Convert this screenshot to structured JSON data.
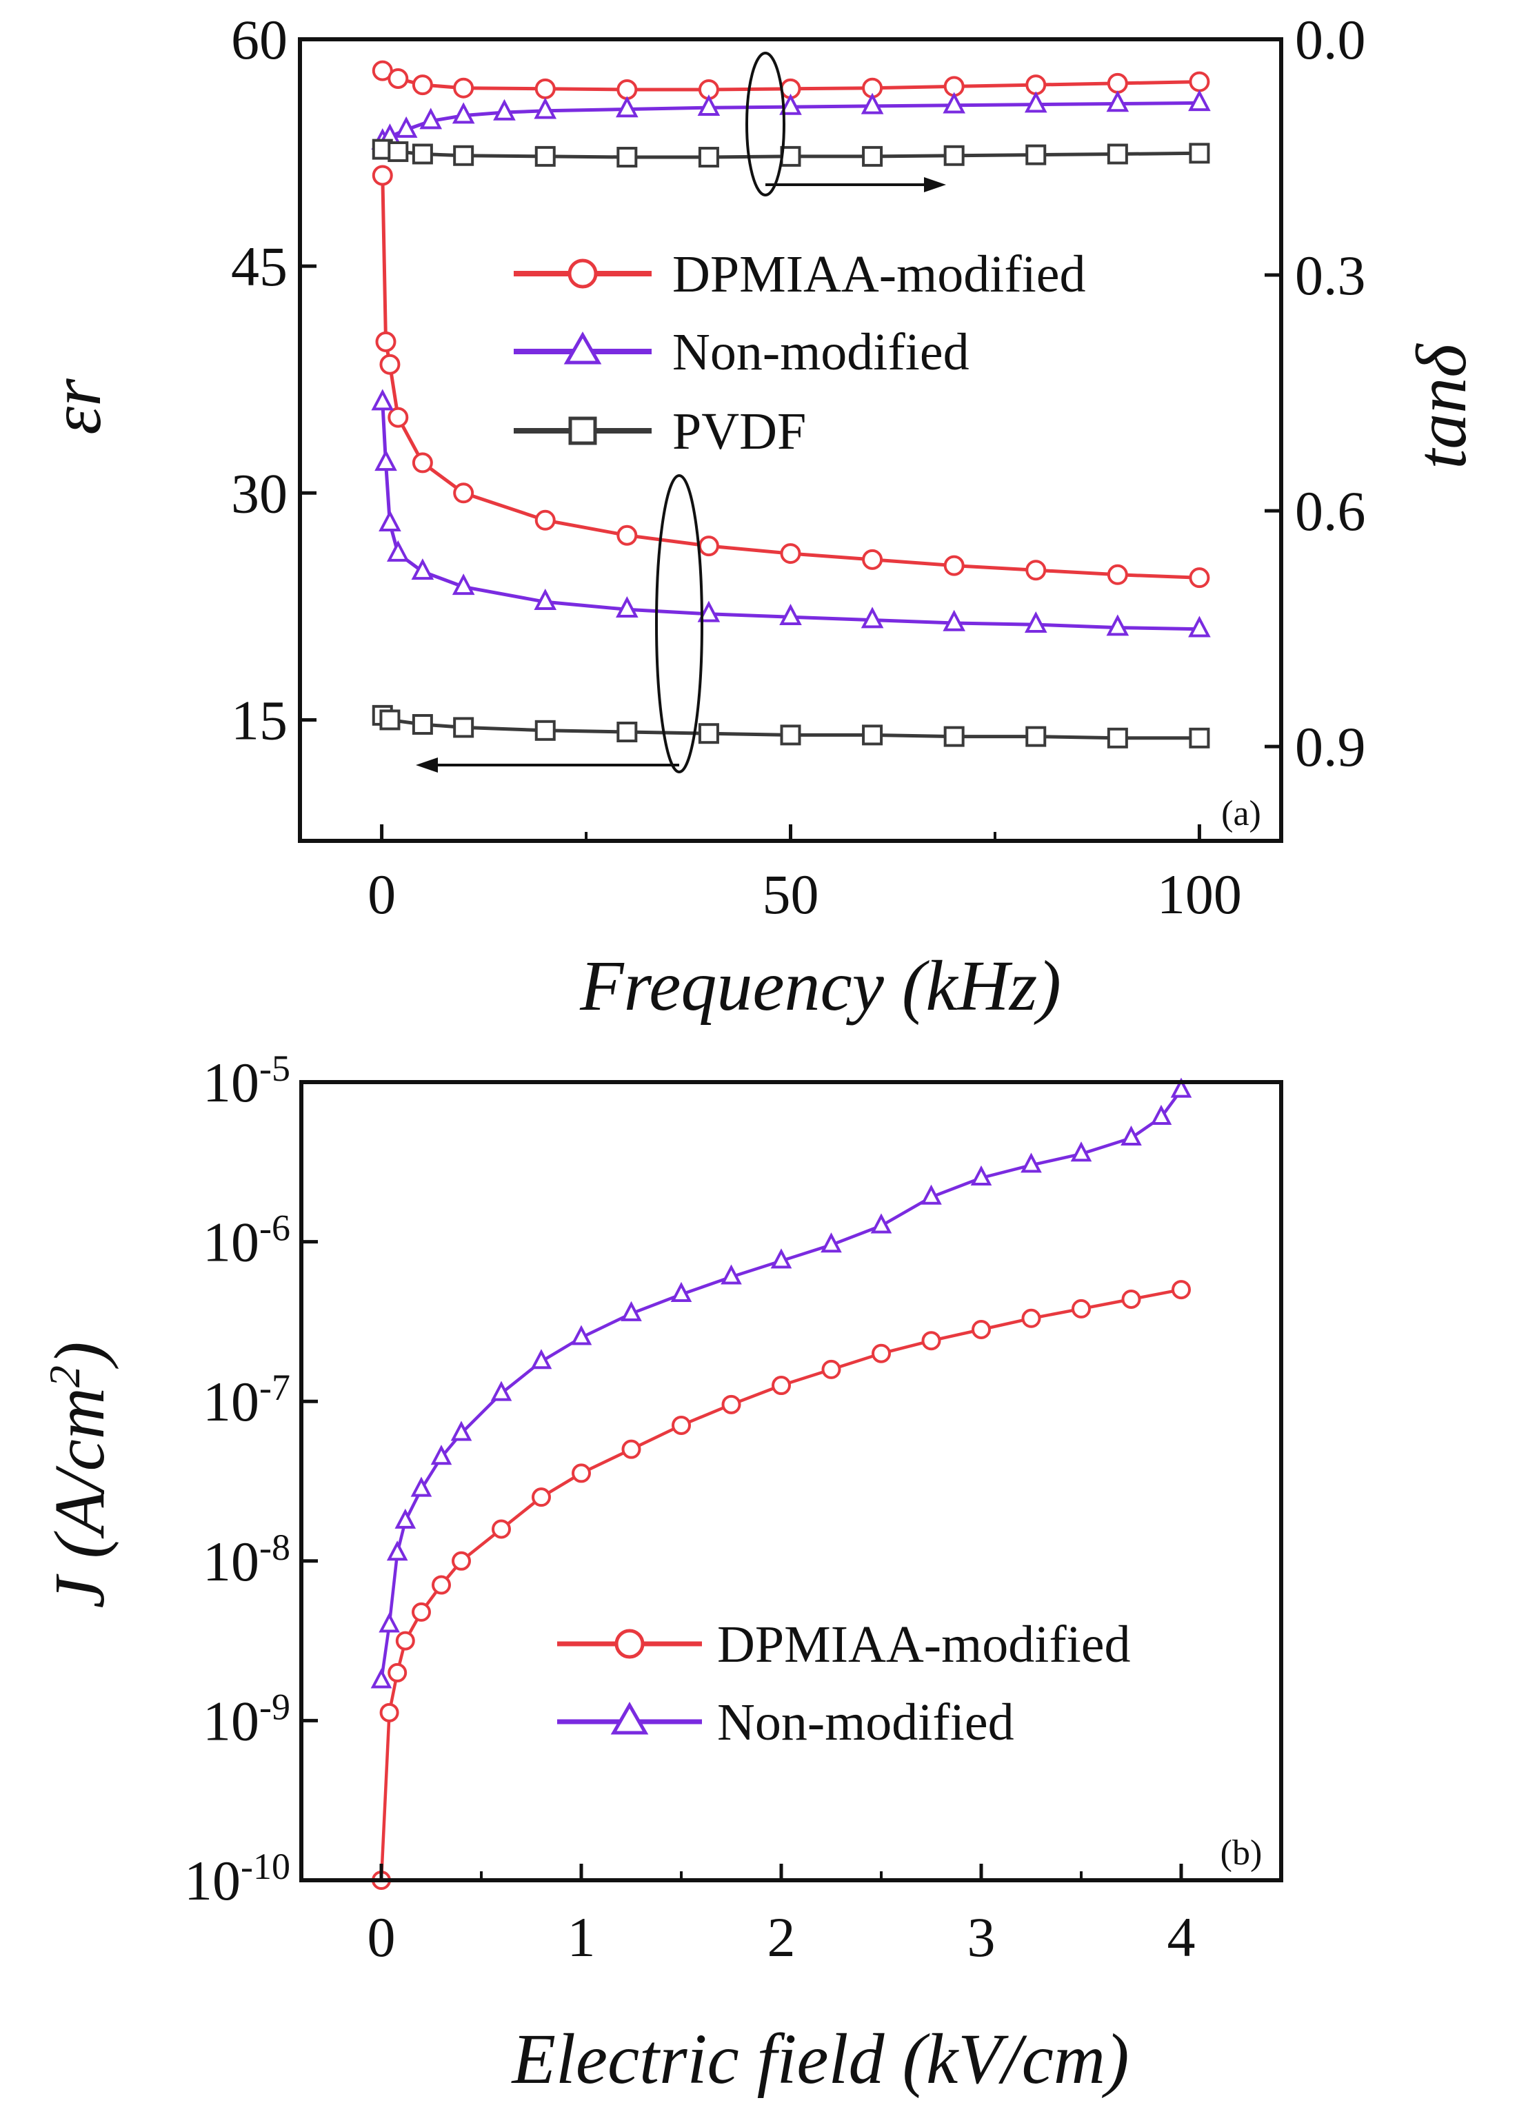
{
  "colors": {
    "dpmiaa": "#e8393f",
    "non_modified": "#7a2be0",
    "pvdf": "#3a3a3a",
    "axis": "#111111"
  },
  "chart_data": [
    {
      "id": "a",
      "type": "line",
      "panel_label": "(a)",
      "xlabel": "Frequency (kHz)",
      "ylabel": "εr",
      "y2label": "tanδ",
      "xlim": [
        -10,
        110
      ],
      "ylim": [
        7,
        60
      ],
      "y2lim": [
        0.0,
        1.02
      ],
      "y2_reversed": true,
      "x_ticks": [
        0,
        50,
        100
      ],
      "x_tick_labels": [
        "0",
        "50",
        "100"
      ],
      "y_ticks": [
        15,
        30,
        45,
        60
      ],
      "y_tick_labels": [
        "15",
        "30",
        "45",
        "60"
      ],
      "y2_ticks": [
        0.0,
        0.3,
        0.6,
        0.9
      ],
      "y2_tick_labels": [
        "0.0",
        "0.3",
        "0.6",
        "0.9"
      ],
      "legend": [
        "DPMIAA-modified",
        "Non-modified",
        "PVDF"
      ],
      "annotations": [
        "ellipse around dielectric constant curves with arrow pointing to left axis",
        "ellipse around loss tangent curves with arrow pointing to right axis"
      ],
      "series": [
        {
          "name": "DPMIAA-modified",
          "axis": "left",
          "marker": "circle",
          "x": [
            0.1,
            0.5,
            1,
            2,
            5,
            10,
            20,
            30,
            40,
            50,
            60,
            70,
            80,
            90,
            100
          ],
          "y": [
            51,
            40,
            38.5,
            35,
            32,
            30,
            28.2,
            27.2,
            26.5,
            26,
            25.6,
            25.2,
            24.9,
            24.6,
            24.4
          ]
        },
        {
          "name": "Non-modified",
          "axis": "left",
          "marker": "triangle",
          "x": [
            0.1,
            0.5,
            1,
            2,
            5,
            10,
            20,
            30,
            40,
            50,
            60,
            70,
            80,
            90,
            100
          ],
          "y": [
            36,
            32,
            28,
            26,
            24.8,
            23.8,
            22.8,
            22.3,
            22,
            21.8,
            21.6,
            21.4,
            21.3,
            21.1,
            21
          ]
        },
        {
          "name": "PVDF",
          "axis": "left",
          "marker": "square",
          "x": [
            0.1,
            1,
            5,
            10,
            20,
            30,
            40,
            50,
            60,
            70,
            80,
            90,
            100
          ],
          "y": [
            15.3,
            15,
            14.7,
            14.5,
            14.3,
            14.2,
            14.1,
            14,
            14,
            13.9,
            13.9,
            13.8,
            13.8
          ]
        },
        {
          "name": "DPMIAA-modified tanδ",
          "axis": "right",
          "marker": "circle",
          "x": [
            0.1,
            2,
            5,
            10,
            20,
            30,
            40,
            50,
            60,
            70,
            80,
            90,
            100
          ],
          "y": [
            0.04,
            0.05,
            0.058,
            0.062,
            0.063,
            0.064,
            0.064,
            0.063,
            0.062,
            0.06,
            0.058,
            0.056,
            0.054
          ]
        },
        {
          "name": "Non-modified tanδ",
          "axis": "right",
          "marker": "triangle",
          "x": [
            0.1,
            1,
            3,
            6,
            10,
            15,
            20,
            30,
            40,
            50,
            60,
            70,
            80,
            90,
            100
          ],
          "y": [
            0.13,
            0.124,
            0.115,
            0.104,
            0.097,
            0.093,
            0.091,
            0.089,
            0.087,
            0.086,
            0.085,
            0.084,
            0.083,
            0.082,
            0.081
          ]
        },
        {
          "name": "PVDF tanδ",
          "axis": "right",
          "marker": "square",
          "x": [
            0.1,
            2,
            5,
            10,
            20,
            30,
            40,
            50,
            60,
            70,
            80,
            90,
            100
          ],
          "y": [
            0.14,
            0.143,
            0.146,
            0.148,
            0.149,
            0.15,
            0.15,
            0.149,
            0.149,
            0.148,
            0.147,
            0.146,
            0.145
          ]
        }
      ]
    },
    {
      "id": "b",
      "type": "line",
      "panel_label": "(b)",
      "xlabel": "Electric field (kV/cm)",
      "ylabel": "J (A/cm2)",
      "xlim": [
        -0.4,
        4.5
      ],
      "ylim_log10": [
        -10,
        -5
      ],
      "x_ticks": [
        0,
        1,
        2,
        3,
        4
      ],
      "x_tick_labels": [
        "0",
        "1",
        "2",
        "3",
        "4"
      ],
      "y_ticks_log10": [
        -10,
        -9,
        -8,
        -7,
        -6,
        -5
      ],
      "y_tick_base": "10",
      "y_tick_exponents": [
        "-10",
        "-9",
        "-8",
        "-7",
        "-6",
        "-5"
      ],
      "legend": [
        "DPMIAA-modified",
        "Non-modified"
      ],
      "series": [
        {
          "name": "DPMIAA-modified",
          "marker": "circle",
          "x": [
            0.0,
            0.04,
            0.08,
            0.12,
            0.2,
            0.3,
            0.4,
            0.6,
            0.8,
            1.0,
            1.25,
            1.5,
            1.75,
            2.0,
            2.25,
            2.5,
            2.75,
            3.0,
            3.25,
            3.5,
            3.75,
            4.0
          ],
          "log10_y": [
            -10,
            -8.95,
            -8.7,
            -8.5,
            -8.32,
            -8.15,
            -8.0,
            -7.8,
            -7.6,
            -7.45,
            -7.3,
            -7.15,
            -7.02,
            -6.9,
            -6.8,
            -6.7,
            -6.62,
            -6.55,
            -6.48,
            -6.42,
            -6.36,
            -6.3
          ]
        },
        {
          "name": "Non-modified",
          "marker": "triangle",
          "x": [
            0.0,
            0.04,
            0.08,
            0.12,
            0.2,
            0.3,
            0.4,
            0.6,
            0.8,
            1.0,
            1.25,
            1.5,
            1.75,
            2.0,
            2.25,
            2.5,
            2.75,
            3.0,
            3.25,
            3.5,
            3.75,
            3.9,
            4.0
          ],
          "log10_y": [
            -8.75,
            -8.4,
            -7.95,
            -7.75,
            -7.55,
            -7.35,
            -7.2,
            -6.95,
            -6.75,
            -6.6,
            -6.45,
            -6.33,
            -6.22,
            -6.12,
            -6.02,
            -5.9,
            -5.72,
            -5.6,
            -5.52,
            -5.45,
            -5.35,
            -5.22,
            -5.05
          ]
        }
      ]
    }
  ]
}
